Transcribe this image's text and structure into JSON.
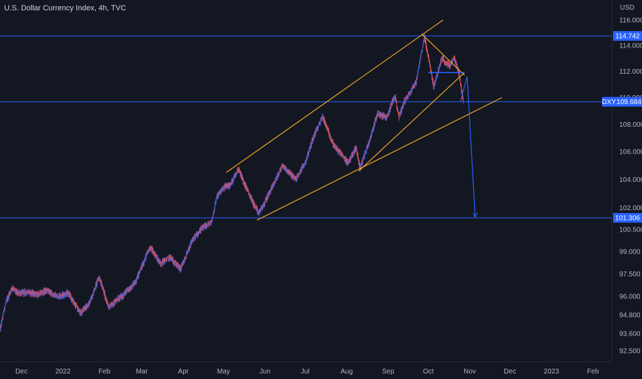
{
  "chart_data": {
    "type": "candlestick",
    "title": "U.S. Dollar Currency Index, 4h, TVC",
    "currency": "USD",
    "y_scale": "log",
    "ylim": [
      91.8,
      117.6
    ],
    "y_ticks": [
      "116.000",
      "114.000",
      "112.000",
      "110.000",
      "108.000",
      "106.000",
      "104.000",
      "102.000",
      "100.500",
      "99.000",
      "97.500",
      "96.000",
      "94.800",
      "93.600",
      "92.500"
    ],
    "x_range": [
      "2021-11-15",
      "2023-02-15"
    ],
    "x_ticks": [
      {
        "label": "Dec",
        "date": "2021-12-01"
      },
      {
        "label": "2022",
        "date": "2022-01-01"
      },
      {
        "label": "Feb",
        "date": "2022-02-01"
      },
      {
        "label": "Mar",
        "date": "2022-03-01"
      },
      {
        "label": "Apr",
        "date": "2022-04-01"
      },
      {
        "label": "May",
        "date": "2022-05-01"
      },
      {
        "label": "Jun",
        "date": "2022-06-01"
      },
      {
        "label": "Jul",
        "date": "2022-07-01"
      },
      {
        "label": "Aug",
        "date": "2022-08-01"
      },
      {
        "label": "Sep",
        "date": "2022-09-01"
      },
      {
        "label": "Oct",
        "date": "2022-10-01"
      },
      {
        "label": "Nov",
        "date": "2022-11-01"
      },
      {
        "label": "Dec",
        "date": "2022-12-01"
      },
      {
        "label": "2023",
        "date": "2023-01-01"
      },
      {
        "label": "Feb",
        "date": "2023-02-01"
      }
    ],
    "price_path": [
      [
        "2021-11-15",
        93.8
      ],
      [
        "2021-11-19",
        95.5
      ],
      [
        "2021-11-24",
        96.6
      ],
      [
        "2021-11-28",
        96.2
      ],
      [
        "2021-12-06",
        96.3
      ],
      [
        "2021-12-13",
        96.1
      ],
      [
        "2021-12-20",
        96.4
      ],
      [
        "2021-12-27",
        96.0
      ],
      [
        "2022-01-05",
        96.2
      ],
      [
        "2022-01-14",
        94.9
      ],
      [
        "2022-01-21",
        95.6
      ],
      [
        "2022-01-28",
        97.3
      ],
      [
        "2022-02-04",
        95.3
      ],
      [
        "2022-02-14",
        96.0
      ],
      [
        "2022-02-24",
        96.9
      ],
      [
        "2022-03-07",
        99.3
      ],
      [
        "2022-03-15",
        98.2
      ],
      [
        "2022-03-22",
        98.6
      ],
      [
        "2022-03-30",
        97.8
      ],
      [
        "2022-04-08",
        99.8
      ],
      [
        "2022-04-14",
        100.5
      ],
      [
        "2022-04-22",
        101.0
      ],
      [
        "2022-04-26",
        102.8
      ],
      [
        "2022-05-02",
        103.5
      ],
      [
        "2022-05-06",
        103.6
      ],
      [
        "2022-05-12",
        104.8
      ],
      [
        "2022-05-18",
        103.4
      ],
      [
        "2022-05-27",
        101.6
      ],
      [
        "2022-06-01",
        102.4
      ],
      [
        "2022-06-10",
        104.2
      ],
      [
        "2022-06-14",
        105.0
      ],
      [
        "2022-06-24",
        104.0
      ],
      [
        "2022-07-01",
        105.2
      ],
      [
        "2022-07-07",
        107.0
      ],
      [
        "2022-07-14",
        108.6
      ],
      [
        "2022-07-22",
        106.5
      ],
      [
        "2022-08-02",
        105.2
      ],
      [
        "2022-08-08",
        106.3
      ],
      [
        "2022-08-11",
        104.8
      ],
      [
        "2022-08-18",
        106.8
      ],
      [
        "2022-08-24",
        108.8
      ],
      [
        "2022-08-31",
        108.5
      ],
      [
        "2022-09-06",
        110.2
      ],
      [
        "2022-09-09",
        108.5
      ],
      [
        "2022-09-13",
        109.7
      ],
      [
        "2022-09-22",
        111.2
      ],
      [
        "2022-09-28",
        114.7
      ],
      [
        "2022-10-03",
        112.0
      ],
      [
        "2022-10-05",
        110.8
      ],
      [
        "2022-10-11",
        113.0
      ],
      [
        "2022-10-17",
        112.4
      ],
      [
        "2022-10-20",
        113.0
      ],
      [
        "2022-10-24",
        111.8
      ],
      [
        "2022-10-27",
        109.7
      ]
    ],
    "horizontal_levels": [
      {
        "price": 114.742,
        "label": "114.742",
        "color": "#2962ff"
      },
      {
        "price": 109.684,
        "label": "109.684",
        "tag": "DXY",
        "color": "#2962ff"
      },
      {
        "price": 101.306,
        "label": "101.306",
        "color": "#2962ff"
      }
    ],
    "trendlines": [
      {
        "from": [
          "2022-05-03",
          104.5
        ],
        "to": [
          "2022-10-12",
          116.0
        ],
        "color": "#f5a623"
      },
      {
        "from": [
          "2022-05-26",
          101.15
        ],
        "to": [
          "2022-11-25",
          110.0
        ],
        "color": "#f5a623"
      },
      {
        "from": [
          "2022-08-10",
          104.6
        ],
        "to": [
          "2022-10-28",
          111.9
        ],
        "color": "#f5a623"
      },
      {
        "from": [
          "2022-09-26",
          114.9
        ],
        "to": [
          "2022-10-28",
          111.7
        ],
        "color": "#f5a623"
      }
    ],
    "neckline": {
      "from": [
        "2022-10-01",
        111.9
      ],
      "to": [
        "2022-10-28",
        111.9
      ],
      "color": "#2962ff"
    },
    "projection_arrow": [
      [
        "2022-10-25",
        109.7
      ],
      [
        "2022-10-30",
        111.6
      ],
      [
        "2022-11-05",
        101.35
      ]
    ],
    "colors": {
      "background": "#131722",
      "up": "#3b5bdb",
      "down": "#ef5350",
      "level": "#2962ff",
      "trend": "#f5a623",
      "axis_text": "#b2b5be"
    }
  }
}
